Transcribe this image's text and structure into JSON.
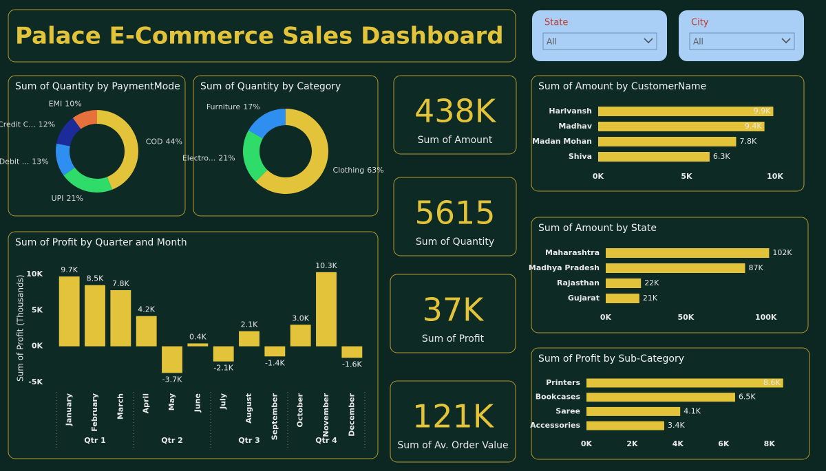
{
  "title": "Palace E-Commerce Sales Dashboard",
  "slicers": [
    {
      "label": "State",
      "value": "All"
    },
    {
      "label": "City",
      "value": "All"
    }
  ],
  "cards": [
    {
      "value": "438K",
      "label": "Sum of Amount"
    },
    {
      "value": "5615",
      "label": "Sum of Quantity"
    },
    {
      "value": "37K",
      "label": "Sum of Profit"
    },
    {
      "value": "121K",
      "label": "Sum of Av. Order Value"
    }
  ],
  "chart_data": [
    {
      "type": "donut",
      "title": "Sum of Quantity by PaymentMode",
      "categories": [
        "COD",
        "UPI",
        "Debit ...",
        "Credit C...",
        "EMI"
      ],
      "values": [
        44,
        21,
        13,
        12,
        10
      ],
      "value_labels": [
        "44%",
        "21%",
        "13%",
        "12%",
        "10%"
      ],
      "colors": [
        "#e3c33a",
        "#2fdc6a",
        "#2f8ff0",
        "#1c2a9a",
        "#e8703a"
      ]
    },
    {
      "type": "donut",
      "title": "Sum of Quantity by Category",
      "categories": [
        "Clothing",
        "Electro...",
        "Furniture"
      ],
      "values": [
        63,
        21,
        17
      ],
      "value_labels": [
        "63%",
        "21%",
        "17%"
      ],
      "colors": [
        "#e3c33a",
        "#2fdc6a",
        "#2f8ff0"
      ]
    },
    {
      "type": "bar",
      "title": "Sum of Profit by Quarter and Month",
      "y_label": "Sum of Profit (Thousands)",
      "categories": [
        "January",
        "February",
        "March",
        "April",
        "May",
        "June",
        "July",
        "August",
        "September",
        "October",
        "November",
        "December"
      ],
      "groups": [
        "Qtr 1",
        "Qtr 2",
        "Qtr 3",
        "Qtr 4"
      ],
      "values": [
        9.7,
        8.5,
        7.8,
        4.2,
        -3.7,
        0.4,
        -2.1,
        2.1,
        -1.4,
        3.0,
        10.3,
        -1.6
      ],
      "value_labels": [
        "9.7K",
        "8.5K",
        "7.8K",
        "4.2K",
        "-3.7K",
        "0.4K",
        "-2.1K",
        "2.1K",
        "-1.4K",
        "3.0K",
        "10.3K",
        "-1.6K"
      ],
      "color": "#e3c33a",
      "ylim": [
        -5,
        11
      ],
      "yticks": [
        {
          "value": -5,
          "label": "-5K"
        },
        {
          "value": 0,
          "label": "0K"
        },
        {
          "value": 5,
          "label": "5K"
        },
        {
          "value": 10,
          "label": "10K"
        }
      ]
    },
    {
      "type": "barh",
      "title": "Sum of Amount by CustomerName",
      "categories": [
        "Harivansh",
        "Madhav",
        "Madan Mohan",
        "Shiva"
      ],
      "values": [
        9.9,
        9.4,
        7.8,
        6.3
      ],
      "value_labels": [
        "9.9K",
        "9.4K",
        "7.8K",
        "6.3K"
      ],
      "color": "#e3c33a",
      "xlim": [
        0,
        10
      ],
      "xticks": [
        {
          "value": 0,
          "label": "0K"
        },
        {
          "value": 5,
          "label": "5K"
        },
        {
          "value": 10,
          "label": "10K"
        }
      ]
    },
    {
      "type": "barh",
      "title": "Sum of Amount by State",
      "categories": [
        "Maharashtra",
        "Madhya Pradesh",
        "Rajasthan",
        "Gujarat"
      ],
      "values": [
        102,
        87,
        22,
        21
      ],
      "value_labels": [
        "102K",
        "87K",
        "22K",
        "21K"
      ],
      "color": "#e3c33a",
      "xlim": [
        0,
        110
      ],
      "xticks": [
        {
          "value": 0,
          "label": "0K"
        },
        {
          "value": 50,
          "label": "50K"
        },
        {
          "value": 100,
          "label": "100K"
        }
      ]
    },
    {
      "type": "barh",
      "title": "Sum of Profit by Sub-Category",
      "categories": [
        "Printers",
        "Bookcases",
        "Saree",
        "Accessories"
      ],
      "values": [
        8.6,
        6.5,
        4.1,
        3.4
      ],
      "value_labels": [
        "8.6K",
        "6.5K",
        "4.1K",
        "3.4K"
      ],
      "color": "#e3c33a",
      "xlim": [
        0,
        9
      ],
      "xticks": [
        {
          "value": 0,
          "label": "0K"
        },
        {
          "value": 2,
          "label": "2K"
        },
        {
          "value": 4,
          "label": "4K"
        },
        {
          "value": 6,
          "label": "6K"
        },
        {
          "value": 8,
          "label": "8K"
        }
      ]
    }
  ]
}
